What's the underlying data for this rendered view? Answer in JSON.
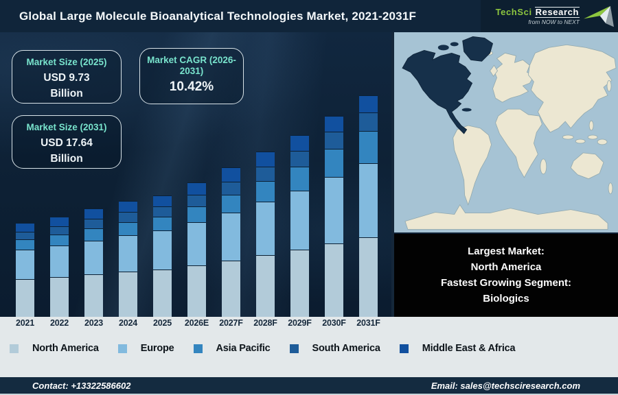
{
  "header": {
    "title": "Global Large Molecule Bioanalytical Technologies Market, 2021-2031F",
    "logo": {
      "brand_primary": "TechSci",
      "brand_secondary": "Research",
      "tagline": "from NOW to NEXT",
      "brand_color": "#8dc63f"
    }
  },
  "stats": [
    {
      "label": "Market Size (2025)",
      "value": "USD 9.73",
      "unit": "Billion"
    },
    {
      "label": "Market CAGR (2026-2031)",
      "value": "10.42%",
      "unit": ""
    },
    {
      "label": "Market Size (2031)",
      "value": "USD 17.64",
      "unit": "Billion"
    }
  ],
  "chart_data": {
    "type": "bar",
    "stacked": true,
    "title": "Global Large Molecule Bioanalytical Technologies Market, 2021-2031F",
    "unit": "USD Billion",
    "categories": [
      "2021",
      "2022",
      "2023",
      "2024",
      "2025",
      "2026E",
      "2027F",
      "2028F",
      "2029F",
      "2030F",
      "2031F"
    ],
    "series": [
      {
        "name": "North America",
        "color": "#b2cbd9",
        "values": [
          3.0,
          3.18,
          3.4,
          3.6,
          3.76,
          4.1,
          4.48,
          4.9,
          5.35,
          5.85,
          6.35
        ]
      },
      {
        "name": "Europe",
        "color": "#82bade",
        "values": [
          2.33,
          2.49,
          2.67,
          2.89,
          3.14,
          3.45,
          3.82,
          4.25,
          4.72,
          5.28,
          5.91
        ]
      },
      {
        "name": "Asia Pacific",
        "color": "#3385bf",
        "values": [
          0.83,
          0.9,
          0.99,
          1.05,
          1.09,
          1.26,
          1.42,
          1.64,
          1.9,
          2.22,
          2.56
        ]
      },
      {
        "name": "South America",
        "color": "#1e5c99",
        "values": [
          0.62,
          0.68,
          0.74,
          0.81,
          0.84,
          0.93,
          1.02,
          1.12,
          1.23,
          1.34,
          1.45
        ]
      },
      {
        "name": "Middle East & Africa",
        "color": "#11509f",
        "values": [
          0.72,
          0.75,
          0.8,
          0.85,
          0.9,
          1.0,
          1.12,
          1.19,
          1.26,
          1.28,
          1.37
        ]
      }
    ],
    "totals": [
      7.5,
      8.0,
      8.6,
      9.2,
      9.73,
      10.74,
      11.86,
      13.1,
      14.46,
      15.97,
      17.64
    ],
    "ylim": [
      0,
      18
    ],
    "grid": false,
    "y_axis_visible": false,
    "legend_position": "bottom"
  },
  "map_panel": {
    "highlighted_region": "North America",
    "callout_lines": [
      "Largest Market:",
      "North America",
      "Fastest Growing Segment:",
      "Biologics"
    ],
    "colors": {
      "ocean": "#a6c3d4",
      "land": "#ece7d2",
      "highlight": "#16304a"
    }
  },
  "footer": {
    "contact": "Contact: +13322586602",
    "email": "Email: sales@techsciresearch.com"
  }
}
